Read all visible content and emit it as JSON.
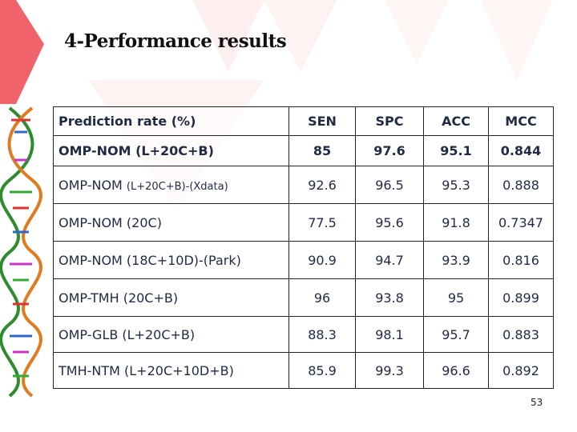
{
  "slide": {
    "title": "4-Performance results",
    "page_number": "53",
    "accent_color": "#f0636b"
  },
  "table": {
    "headers": [
      "Prediction rate (%)",
      "SEN",
      "SPC",
      "ACC",
      "MCC"
    ],
    "rows": [
      {
        "name": "OMP-NOM (L+20C+B)",
        "name_suffix": "",
        "values": [
          "85",
          "97.6",
          "95.1",
          "0.844"
        ]
      },
      {
        "name": "OMP-NOM ",
        "name_suffix": "(L+20C+B)-(Xdata)",
        "values": [
          "92.6",
          "96.5",
          "95.3",
          "0.888"
        ]
      },
      {
        "name": "OMP-NOM (20C)",
        "name_suffix": "",
        "values": [
          "77.5",
          "95.6",
          "91.8",
          "0.7347"
        ]
      },
      {
        "name": "OMP-NOM (18C+10D)-(Park)",
        "name_suffix": "",
        "values": [
          "90.9",
          "94.7",
          "93.9",
          "0.816"
        ]
      },
      {
        "name": "OMP-TMH (20C+B)",
        "name_suffix": "",
        "values": [
          "96",
          "93.8",
          "95",
          "0.899"
        ]
      },
      {
        "name": "OMP-GLB (L+20C+B)",
        "name_suffix": "",
        "values": [
          "88.3",
          "98.1",
          "95.7",
          "0.883"
        ]
      },
      {
        "name": "TMH-NTM (L+20C+10D+B)",
        "name_suffix": "",
        "values": [
          "85.9",
          "99.3",
          "96.6",
          "0.892"
        ]
      }
    ]
  }
}
